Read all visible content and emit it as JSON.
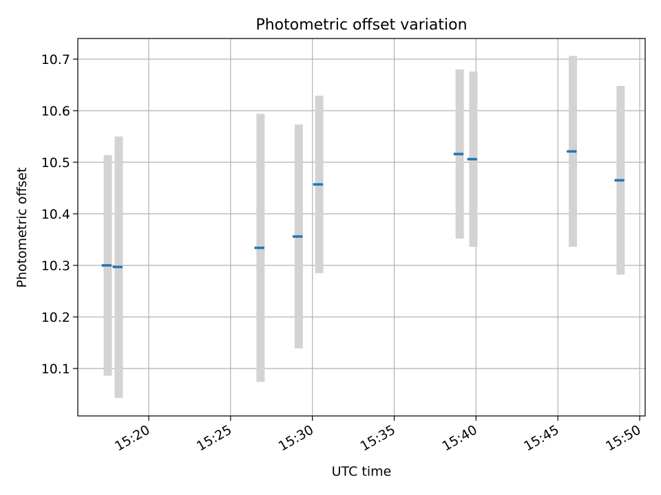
{
  "chart_data": {
    "type": "scatter",
    "title": "Photometric offset variation",
    "xlabel": "UTC time",
    "ylabel": "Photometric offset",
    "x_ticks": [
      "15:20",
      "15:25",
      "15:30",
      "15:35",
      "15:40",
      "15:45",
      "15:50"
    ],
    "y_ticks": [
      "10.1",
      "10.2",
      "10.3",
      "10.4",
      "10.5",
      "10.6",
      "10.7"
    ],
    "xlim": [
      "15:15:40",
      "15:50:20"
    ],
    "ylim": [
      10.008,
      10.74
    ],
    "grid": true,
    "colors": {
      "marker": "#1f77b4",
      "error_bar": "#d3d3d3",
      "grid": "#b0b0b0"
    },
    "points": [
      {
        "x": "15:17:30",
        "y": 10.3,
        "ylow": 10.086,
        "yhigh": 10.514
      },
      {
        "x": "15:18:10",
        "y": 10.297,
        "ylow": 10.043,
        "yhigh": 10.55
      },
      {
        "x": "15:26:50",
        "y": 10.334,
        "ylow": 10.074,
        "yhigh": 10.594
      },
      {
        "x": "15:29:10",
        "y": 10.356,
        "ylow": 10.139,
        "yhigh": 10.573
      },
      {
        "x": "15:30:25",
        "y": 10.457,
        "ylow": 10.285,
        "yhigh": 10.629
      },
      {
        "x": "15:39:00",
        "y": 10.516,
        "ylow": 10.352,
        "yhigh": 10.68
      },
      {
        "x": "15:39:50",
        "y": 10.506,
        "ylow": 10.336,
        "yhigh": 10.676
      },
      {
        "x": "15:45:55",
        "y": 10.521,
        "ylow": 10.336,
        "yhigh": 10.706
      },
      {
        "x": "15:48:50",
        "y": 10.465,
        "ylow": 10.282,
        "yhigh": 10.648
      }
    ]
  }
}
